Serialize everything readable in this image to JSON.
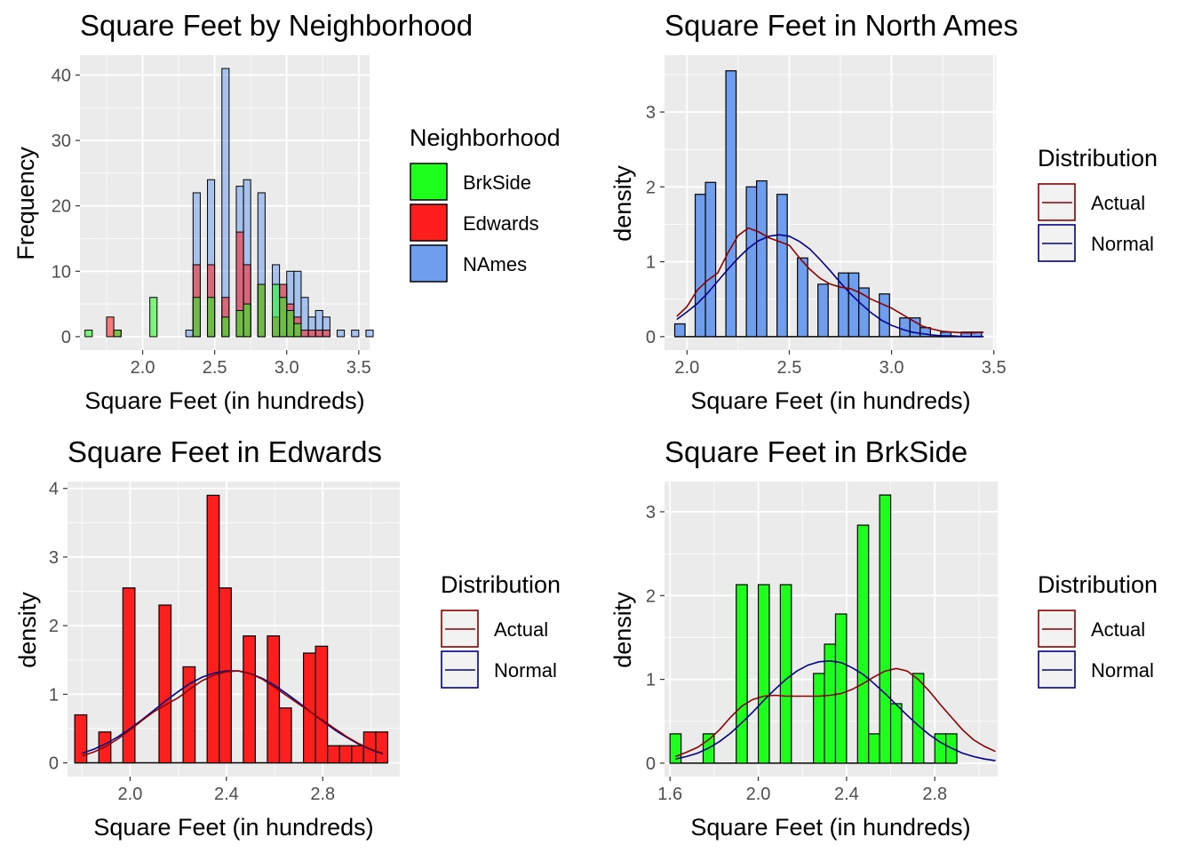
{
  "colors": {
    "panel_bg": "#EBEBEB",
    "grid": "#FFFFFF",
    "BrkSide": "#1EFF1E",
    "Edwards": "#FF1E1E",
    "NAmes": "#6F9EEF",
    "actual_line": "#8B0000",
    "normal_line": "#00008B",
    "bar_outline": "#000000"
  },
  "chart_data": [
    {
      "type": "bar",
      "title": "Square Feet by Neighborhood",
      "xlabel": "Square Feet (in hundreds)",
      "ylabel": "Frequency",
      "xlim": [
        1.565,
        3.575
      ],
      "ylim": [
        -2.05,
        43.05
      ],
      "x_ticks": [
        2.0,
        2.5,
        3.0,
        3.5
      ],
      "x_tick_labels": [
        "2.0",
        "2.5",
        "3.0",
        "3.5"
      ],
      "y_ticks": [
        0,
        10,
        20,
        30,
        40
      ],
      "y_tick_labels": [
        "0",
        "10",
        "20",
        "30",
        "40"
      ],
      "bin_width": 0.05,
      "bin_start": 1.6,
      "legend": {
        "title": "Neighborhood",
        "position": "right",
        "entries": [
          "BrkSide",
          "Edwards",
          "NAmes"
        ]
      },
      "series": [
        {
          "name": "NAmes",
          "color_key": "NAmes",
          "values": [
            0,
            0,
            0,
            0,
            0,
            0,
            0,
            0,
            0,
            0,
            0,
            0,
            0,
            0,
            1,
            22,
            0,
            24,
            0,
            41,
            0,
            23,
            24,
            0,
            22,
            0,
            11,
            8,
            10,
            10,
            6,
            3,
            4,
            3,
            0,
            1,
            0,
            1,
            0,
            1
          ]
        },
        {
          "name": "Edwards",
          "color_key": "Edwards",
          "values": [
            0,
            0,
            0,
            3,
            1,
            0,
            0,
            0,
            0,
            0,
            0,
            0,
            0,
            0,
            0,
            11,
            0,
            11,
            0,
            6,
            0,
            16,
            11,
            0,
            8,
            0,
            3,
            8,
            5,
            3,
            1,
            1,
            1,
            1,
            0,
            0,
            0,
            0,
            0,
            0
          ]
        },
        {
          "name": "BrkSide",
          "color_key": "BrkSide",
          "values": [
            1,
            0,
            0,
            0,
            1,
            0,
            0,
            0,
            0,
            6,
            0,
            0,
            0,
            0,
            0,
            6,
            0,
            6,
            0,
            3,
            0,
            4,
            5,
            0,
            8,
            0,
            8,
            6,
            4,
            2,
            0,
            0,
            0,
            0,
            0,
            0,
            0,
            0,
            0,
            0
          ]
        }
      ]
    },
    {
      "type": "bar",
      "title": "Square Feet in North Ames",
      "xlabel": "Square Feet (in hundreds)",
      "ylabel": "density",
      "xlim": [
        1.89,
        3.51
      ],
      "ylim": [
        -0.18,
        3.76
      ],
      "x_ticks": [
        2.0,
        2.5,
        3.0,
        3.5
      ],
      "x_tick_labels": [
        "2.0",
        "2.5",
        "3.0",
        "3.5"
      ],
      "y_ticks": [
        0,
        1,
        2,
        3
      ],
      "y_tick_labels": [
        "0",
        "1",
        "2",
        "3"
      ],
      "bin_start": 1.94,
      "bin_width": 0.05,
      "fill_key": "NAmes",
      "values": [
        0.17,
        0,
        1.9,
        2.06,
        0,
        3.55,
        0,
        2.0,
        2.08,
        0,
        1.9,
        0,
        1.05,
        0,
        0.7,
        0,
        0.85,
        0.85,
        0.65,
        0,
        0.57,
        0,
        0.25,
        0.25,
        0.12,
        0,
        0.06,
        0,
        0.06,
        0.06
      ],
      "actual_density": {
        "x": [
          1.95,
          2.0,
          2.05,
          2.1,
          2.15,
          2.2,
          2.25,
          2.3,
          2.35,
          2.4,
          2.45,
          2.5,
          2.55,
          2.6,
          2.65,
          2.7,
          2.75,
          2.8,
          2.85,
          2.9,
          2.95,
          3.0,
          3.05,
          3.1,
          3.15,
          3.2,
          3.25,
          3.3,
          3.35,
          3.4,
          3.45
        ],
        "y": [
          0.27,
          0.4,
          0.62,
          0.75,
          0.85,
          1.12,
          1.35,
          1.45,
          1.4,
          1.32,
          1.27,
          1.22,
          1.05,
          0.9,
          0.78,
          0.7,
          0.66,
          0.64,
          0.58,
          0.5,
          0.44,
          0.38,
          0.3,
          0.22,
          0.14,
          0.1,
          0.07,
          0.06,
          0.05,
          0.05,
          0.06
        ]
      },
      "normal_density": {
        "x": [
          1.95,
          2.0,
          2.05,
          2.1,
          2.15,
          2.2,
          2.25,
          2.3,
          2.35,
          2.4,
          2.45,
          2.5,
          2.55,
          2.6,
          2.65,
          2.7,
          2.75,
          2.8,
          2.85,
          2.9,
          2.95,
          3.0,
          3.05,
          3.1,
          3.15,
          3.2,
          3.25,
          3.3,
          3.35,
          3.4,
          3.45
        ],
        "y": [
          0.23,
          0.33,
          0.44,
          0.58,
          0.74,
          0.9,
          1.05,
          1.18,
          1.28,
          1.34,
          1.36,
          1.34,
          1.27,
          1.17,
          1.03,
          0.88,
          0.72,
          0.57,
          0.44,
          0.32,
          0.22,
          0.15,
          0.1,
          0.06,
          0.04,
          0.02,
          0.01,
          0.01,
          0.0,
          0.0,
          0.0
        ]
      },
      "legend": {
        "title": "Distribution",
        "position": "right",
        "entries": [
          "Actual",
          "Normal"
        ]
      }
    },
    {
      "type": "bar",
      "title": "Square Feet in Edwards",
      "xlabel": "Square Feet (in hundreds)",
      "ylabel": "density",
      "xlim": [
        1.74,
        3.12
      ],
      "ylim": [
        -0.2,
        4.1
      ],
      "x_ticks": [
        2.0,
        2.4,
        2.8
      ],
      "x_tick_labels": [
        "2.0",
        "2.4",
        "2.8"
      ],
      "y_ticks": [
        0,
        1,
        2,
        3,
        4
      ],
      "y_tick_labels": [
        "0",
        "1",
        "2",
        "3",
        "4"
      ],
      "bin_start": 1.77,
      "bin_width": 0.05,
      "fill_key": "Edwards",
      "values": [
        0.7,
        0,
        0.45,
        0,
        2.55,
        0,
        0,
        2.3,
        0,
        1.4,
        0,
        3.9,
        2.55,
        0,
        1.85,
        0,
        1.85,
        0.8,
        0,
        1.6,
        1.7,
        0.25,
        0.25,
        0.25,
        0.45,
        0.45
      ],
      "actual_density": {
        "x": [
          1.8,
          1.85,
          1.9,
          1.95,
          2.0,
          2.05,
          2.1,
          2.15,
          2.2,
          2.25,
          2.3,
          2.35,
          2.4,
          2.45,
          2.5,
          2.55,
          2.6,
          2.65,
          2.7,
          2.75,
          2.8,
          2.85,
          2.9,
          2.95,
          3.0,
          3.05
        ],
        "y": [
          0.1,
          0.16,
          0.24,
          0.35,
          0.48,
          0.62,
          0.75,
          0.85,
          0.95,
          1.08,
          1.2,
          1.28,
          1.33,
          1.34,
          1.3,
          1.22,
          1.1,
          0.98,
          0.86,
          0.74,
          0.62,
          0.5,
          0.38,
          0.28,
          0.2,
          0.14
        ]
      },
      "normal_density": {
        "x": [
          1.8,
          1.85,
          1.9,
          1.95,
          2.0,
          2.05,
          2.1,
          2.15,
          2.2,
          2.25,
          2.3,
          2.35,
          2.4,
          2.45,
          2.5,
          2.55,
          2.6,
          2.65,
          2.7,
          2.75,
          2.8,
          2.85,
          2.9,
          2.95,
          3.0,
          3.05
        ],
        "y": [
          0.14,
          0.2,
          0.28,
          0.38,
          0.5,
          0.63,
          0.77,
          0.91,
          1.04,
          1.16,
          1.25,
          1.31,
          1.34,
          1.34,
          1.3,
          1.23,
          1.13,
          1.01,
          0.88,
          0.74,
          0.61,
          0.48,
          0.37,
          0.27,
          0.19,
          0.13
        ]
      },
      "legend": {
        "title": "Distribution",
        "position": "right",
        "entries": [
          "Actual",
          "Normal"
        ]
      }
    },
    {
      "type": "bar",
      "title": "Square Feet in BrkSide",
      "xlabel": "Square Feet (in hundreds)",
      "ylabel": "density",
      "xlim": [
        1.575,
        3.085
      ],
      "ylim": [
        -0.16,
        3.36
      ],
      "x_ticks": [
        1.6,
        2.0,
        2.4,
        2.8
      ],
      "x_tick_labels": [
        "1.6",
        "2.0",
        "2.4",
        "2.8"
      ],
      "y_ticks": [
        0,
        1,
        2,
        3
      ],
      "y_tick_labels": [
        "0",
        "1",
        "2",
        "3"
      ],
      "bin_start": 1.6,
      "bin_width": 0.05,
      "fill_key": "BrkSide",
      "values": [
        0.35,
        0,
        0,
        0.35,
        0,
        0,
        2.13,
        0,
        2.13,
        0,
        2.13,
        0,
        0,
        1.07,
        1.42,
        1.78,
        0,
        2.84,
        0.35,
        3.2,
        0.71,
        0,
        1.07,
        0,
        0.35,
        0.35
      ],
      "actual_density": {
        "x": [
          1.625,
          1.675,
          1.725,
          1.775,
          1.825,
          1.875,
          1.925,
          1.975,
          2.025,
          2.075,
          2.125,
          2.175,
          2.225,
          2.275,
          2.325,
          2.375,
          2.425,
          2.475,
          2.525,
          2.575,
          2.625,
          2.675,
          2.725,
          2.775,
          2.825,
          2.875,
          2.925,
          2.975,
          3.025,
          3.075
        ],
        "y": [
          0.08,
          0.13,
          0.19,
          0.28,
          0.4,
          0.55,
          0.68,
          0.76,
          0.8,
          0.81,
          0.8,
          0.8,
          0.8,
          0.8,
          0.81,
          0.83,
          0.88,
          0.95,
          1.03,
          1.1,
          1.13,
          1.1,
          1.0,
          0.86,
          0.7,
          0.55,
          0.4,
          0.28,
          0.2,
          0.14
        ]
      },
      "normal_density": {
        "x": [
          1.625,
          1.675,
          1.725,
          1.775,
          1.825,
          1.875,
          1.925,
          1.975,
          2.025,
          2.075,
          2.125,
          2.175,
          2.225,
          2.275,
          2.325,
          2.375,
          2.425,
          2.475,
          2.525,
          2.575,
          2.625,
          2.675,
          2.725,
          2.775,
          2.825,
          2.875,
          2.925,
          2.975,
          3.025,
          3.075
        ],
        "y": [
          0.05,
          0.08,
          0.12,
          0.18,
          0.26,
          0.36,
          0.48,
          0.61,
          0.75,
          0.88,
          1.0,
          1.1,
          1.17,
          1.21,
          1.22,
          1.2,
          1.14,
          1.06,
          0.95,
          0.83,
          0.7,
          0.57,
          0.45,
          0.34,
          0.25,
          0.18,
          0.12,
          0.08,
          0.05,
          0.03
        ]
      },
      "legend": {
        "title": "Distribution",
        "position": "right",
        "entries": [
          "Actual",
          "Normal"
        ]
      }
    }
  ]
}
